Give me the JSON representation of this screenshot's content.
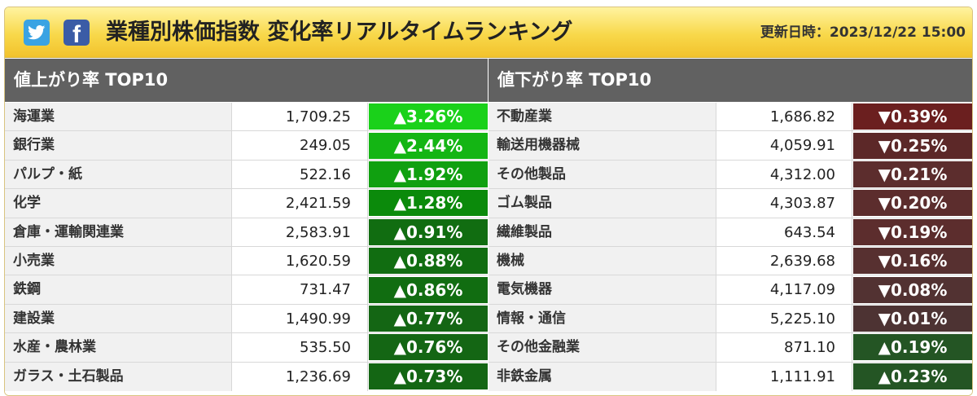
{
  "header": {
    "title": "業種別株価指数 変化率リアルタイムランキング",
    "updated": "更新日時：2023/12/22 15:00",
    "icons": [
      "twitter-icon",
      "facebook-icon"
    ]
  },
  "gainers": {
    "heading": "値上がり率 TOP10",
    "rows": [
      {
        "name": "海運業",
        "value": "1,709.25",
        "rate": "▲3.26%",
        "color": "#1ad11a"
      },
      {
        "name": "銀行業",
        "value": "249.05",
        "rate": "▲2.44%",
        "color": "#14b514"
      },
      {
        "name": "パルプ・紙",
        "value": "522.16",
        "rate": "▲1.92%",
        "color": "#10a010"
      },
      {
        "name": "化学",
        "value": "2,421.59",
        "rate": "▲1.28%",
        "color": "#0b8a0b"
      },
      {
        "name": "倉庫・運輸関連業",
        "value": "2,583.91",
        "rate": "▲0.91%",
        "color": "#116d11"
      },
      {
        "name": "小売業",
        "value": "1,620.59",
        "rate": "▲0.88%",
        "color": "#116d11"
      },
      {
        "name": "鉄鋼",
        "value": "731.47",
        "rate": "▲0.86%",
        "color": "#116d11"
      },
      {
        "name": "建設業",
        "value": "1,490.99",
        "rate": "▲0.77%",
        "color": "#146614"
      },
      {
        "name": "水産・農林業",
        "value": "535.50",
        "rate": "▲0.76%",
        "color": "#146614"
      },
      {
        "name": "ガラス・土石製品",
        "value": "1,236.69",
        "rate": "▲0.73%",
        "color": "#146614"
      }
    ]
  },
  "losers": {
    "heading": "値下がり率 TOP10",
    "rows": [
      {
        "name": "不動産業",
        "value": "1,686.82",
        "rate": "▼0.39%",
        "color": "#6b1f1f"
      },
      {
        "name": "輸送用機器械",
        "value": "4,059.91",
        "rate": "▼0.25%",
        "color": "#5c2828"
      },
      {
        "name": "その他製品",
        "value": "4,312.00",
        "rate": "▼0.21%",
        "color": "#5c2d2d"
      },
      {
        "name": "ゴム製品",
        "value": "4,303.87",
        "rate": "▼0.20%",
        "color": "#5c2d2d"
      },
      {
        "name": "繊維製品",
        "value": "643.54",
        "rate": "▼0.19%",
        "color": "#5c2d2d"
      },
      {
        "name": "機械",
        "value": "2,639.68",
        "rate": "▼0.16%",
        "color": "#573030"
      },
      {
        "name": "電気機器",
        "value": "4,117.09",
        "rate": "▼0.08%",
        "color": "#523232"
      },
      {
        "name": "情報・通信",
        "value": "5,225.10",
        "rate": "▼0.01%",
        "color": "#4d3333"
      },
      {
        "name": "その他金融業",
        "value": "871.10",
        "rate": "▲0.19%",
        "color": "#245524"
      },
      {
        "name": "非鉄金属",
        "value": "1,111.91",
        "rate": "▲0.23%",
        "color": "#245524"
      }
    ]
  }
}
